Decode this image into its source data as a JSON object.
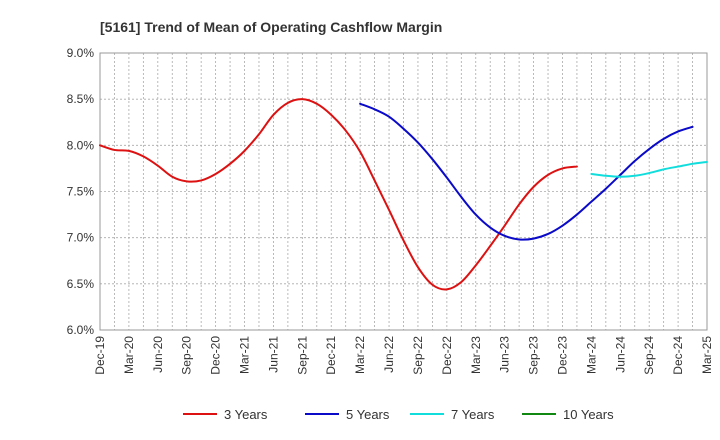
{
  "chart_data": {
    "type": "line",
    "title": "[5161]  Trend of Mean of Operating Cashflow Margin",
    "xlabel": "",
    "ylabel": "",
    "ylim": [
      6.0,
      9.0
    ],
    "grid": true,
    "legend_position": "bottom",
    "y_ticks": [
      "6.0%",
      "6.5%",
      "7.0%",
      "7.5%",
      "8.0%",
      "8.5%",
      "9.0%"
    ],
    "x_ticks": [
      "Dec-19",
      "Mar-20",
      "Jun-20",
      "Sep-20",
      "Dec-20",
      "Mar-21",
      "Jun-21",
      "Sep-21",
      "Dec-21",
      "Mar-22",
      "Jun-22",
      "Sep-22",
      "Dec-22",
      "Mar-23",
      "Jun-23",
      "Sep-23",
      "Dec-23",
      "Mar-24",
      "Jun-24",
      "Sep-24",
      "Dec-24",
      "Mar-25"
    ],
    "series": [
      {
        "name": "3 Years",
        "color": "#dd1111",
        "start_index": 0,
        "values": [
          8.0,
          7.95,
          7.94,
          7.88,
          7.78,
          7.66,
          7.61,
          7.62,
          7.69,
          7.8,
          7.94,
          8.12,
          8.33,
          8.46,
          8.5,
          8.45,
          8.33,
          8.16,
          7.93,
          7.62,
          7.3,
          6.97,
          6.68,
          6.49,
          6.44,
          6.52,
          6.7,
          6.91,
          7.13,
          7.36,
          7.55,
          7.68,
          7.75,
          7.77
        ]
      },
      {
        "name": "5 Years",
        "color": "#0a0ac8",
        "start_index": 18,
        "values": [
          8.45,
          8.39,
          8.31,
          8.18,
          8.03,
          7.85,
          7.65,
          7.44,
          7.25,
          7.11,
          7.02,
          6.98,
          6.99,
          7.04,
          7.13,
          7.25,
          7.39,
          7.53,
          7.68,
          7.83,
          7.96,
          8.07,
          8.15,
          8.2
        ]
      },
      {
        "name": "7 Years",
        "color": "#11dddd",
        "start_index": 34,
        "values": [
          7.69,
          7.67,
          7.66,
          7.67,
          7.7,
          7.74,
          7.77,
          7.8,
          7.82
        ]
      },
      {
        "name": "10 Years",
        "color": "#118811",
        "start_index": 0,
        "values": []
      }
    ]
  }
}
